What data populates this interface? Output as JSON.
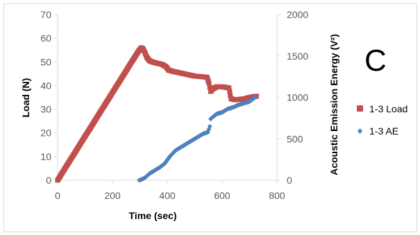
{
  "chart_data": {
    "type": "scatter",
    "panel_label": "C",
    "xlabel": "Time (sec)",
    "ylabel_left": "Load (N)",
    "ylabel_right": "Acoustic Emission Energy (V²)",
    "xlim": [
      0,
      800
    ],
    "ylim_left": [
      0,
      70
    ],
    "ylim_right": [
      0,
      2000
    ],
    "x_ticks": [
      "0",
      "200",
      "400",
      "600",
      "800"
    ],
    "y_ticks_left": [
      "0",
      "10",
      "20",
      "30",
      "40",
      "50",
      "60",
      "70"
    ],
    "y_ticks_right": [
      "0",
      "500",
      "1000",
      "1500",
      "2000"
    ],
    "grid": false,
    "legend_position": "right",
    "series": [
      {
        "name": "1-3 Load",
        "axis": "left",
        "color": "#c0504d",
        "marker": "square",
        "x": [
          0,
          30,
          60,
          90,
          120,
          150,
          180,
          210,
          240,
          270,
          295,
          305,
          312,
          318,
          325,
          335,
          345,
          360,
          380,
          395,
          405,
          420,
          440,
          460,
          480,
          500,
          520,
          545,
          552,
          558,
          565,
          580,
          600,
          625,
          632,
          645,
          665,
          685,
          700,
          715,
          725
        ],
        "y": [
          0,
          5.6,
          11.1,
          16.7,
          22.2,
          27.8,
          33.3,
          38.9,
          44.4,
          50,
          54.5,
          56,
          55.5,
          54,
          52,
          50.5,
          50,
          49.5,
          49,
          48,
          46.5,
          46,
          45.5,
          45,
          44.5,
          44,
          43.8,
          43.5,
          41,
          37.5,
          38.5,
          39.5,
          39.5,
          39,
          34.5,
          34,
          34.2,
          34.5,
          35,
          35.3,
          35.5
        ]
      },
      {
        "name": "1-3 AE",
        "axis": "right",
        "color": "#4f81bd",
        "marker": "diamond",
        "x": [
          298,
          310,
          320,
          335,
          350,
          370,
          390,
          410,
          430,
          450,
          470,
          490,
          510,
          530,
          548,
          555,
          558,
          565,
          580,
          600,
          620,
          640,
          660,
          680,
          700,
          712,
          720
        ],
        "y": [
          0,
          15,
          35,
          80,
          110,
          150,
          200,
          290,
          360,
          400,
          440,
          480,
          520,
          560,
          580,
          650,
          740,
          760,
          800,
          820,
          860,
          880,
          910,
          930,
          950,
          980,
          1000
        ]
      }
    ]
  }
}
